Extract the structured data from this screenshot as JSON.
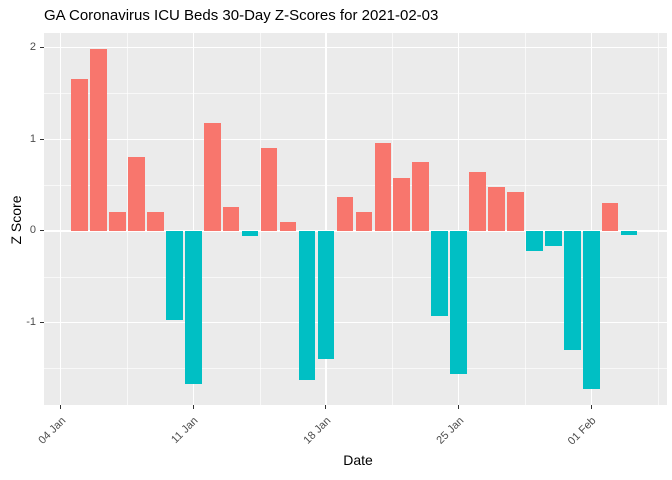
{
  "chart_data": {
    "type": "bar",
    "title": "GA Coronavirus ICU Beds 30-Day Z-Scores for 2021-02-03",
    "xlabel": "Date",
    "ylabel": "Z Score",
    "grid": "on",
    "legend": "none",
    "panel_bg": "#EBEBEB",
    "grid_color": "#FFFFFF",
    "tick_text_color": "#4D4D4D",
    "bar_colors": {
      "positive": "#F8766D",
      "negative": "#00BFC4"
    },
    "ylim": [
      -1.9,
      2.16
    ],
    "y_ticks": [
      2,
      1,
      0,
      -1
    ],
    "y_minor_ticks": [
      1.5,
      0.5,
      -0.5,
      -1.5
    ],
    "x_tick_labels": [
      "04 Jan",
      "11 Jan",
      "18 Jan",
      "25 Jan",
      "01 Feb"
    ],
    "x_tick_day_index": [
      -1,
      6,
      13,
      20,
      27
    ],
    "x": [
      "2021-01-05",
      "2021-01-06",
      "2021-01-07",
      "2021-01-08",
      "2021-01-09",
      "2021-01-10",
      "2021-01-11",
      "2021-01-12",
      "2021-01-13",
      "2021-01-14",
      "2021-01-15",
      "2021-01-16",
      "2021-01-17",
      "2021-01-18",
      "2021-01-19",
      "2021-01-20",
      "2021-01-21",
      "2021-01-22",
      "2021-01-23",
      "2021-01-24",
      "2021-01-25",
      "2021-01-26",
      "2021-01-27",
      "2021-01-28",
      "2021-01-29",
      "2021-01-30",
      "2021-01-31",
      "2021-02-01",
      "2021-02-02",
      "2021-02-03"
    ],
    "values": [
      1.66,
      1.99,
      0.21,
      0.81,
      0.21,
      -0.97,
      -1.67,
      1.18,
      0.26,
      -0.06,
      0.91,
      0.1,
      -1.63,
      -1.4,
      0.37,
      0.21,
      0.96,
      0.58,
      0.75,
      -0.93,
      -1.56,
      0.64,
      0.48,
      0.42,
      -0.22,
      -0.16,
      -1.3,
      -1.73,
      0.31,
      -0.05
    ]
  }
}
